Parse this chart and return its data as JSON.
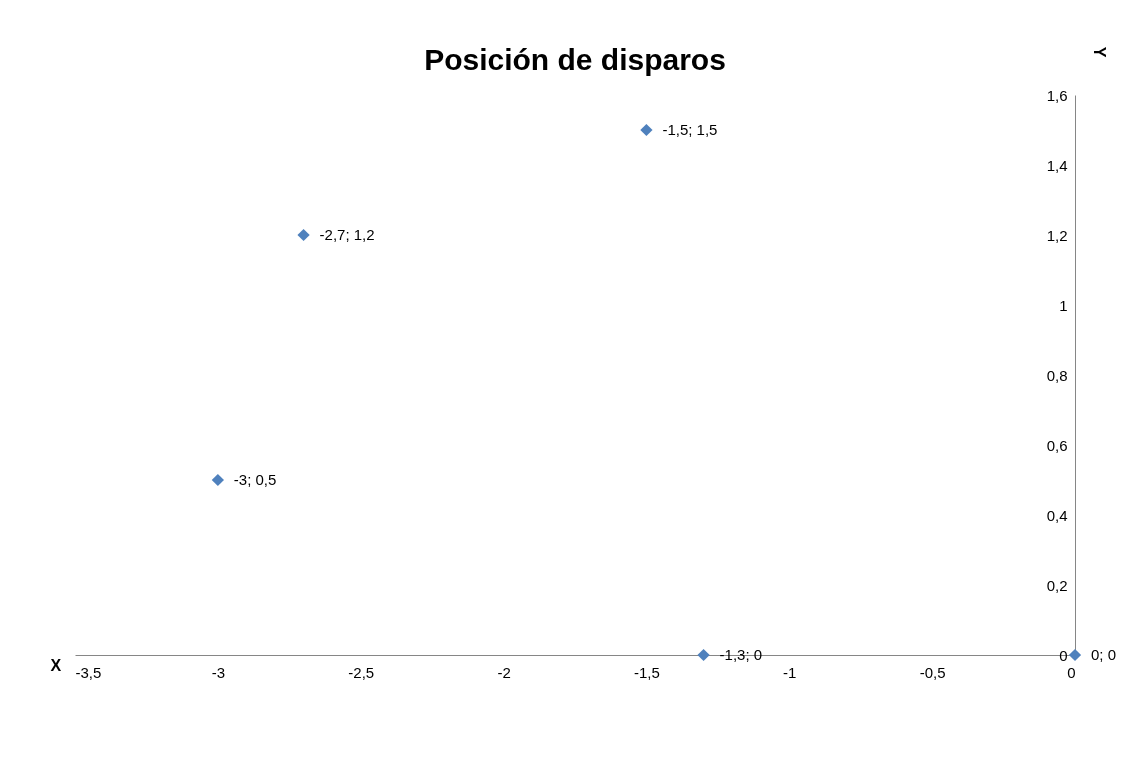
{
  "chart_data": {
    "type": "scatter",
    "title": "Posición de disparos",
    "xlabel": "X",
    "ylabel": "Y",
    "x": [
      -1.5,
      -2.7,
      -3,
      -1.3,
      0
    ],
    "series": [
      {
        "color": "#4f81bd",
        "values": [
          1.5,
          1.2,
          0.5,
          0,
          0
        ],
        "value_labels": [
          "-1,5; 1,5",
          "-2,7; 1,2",
          "-3; 0,5",
          "-1,3; 0",
          "0; 0"
        ]
      }
    ],
    "xlim": [
      -3.5,
      0
    ],
    "ylim": [
      0,
      1.6
    ],
    "xticks": [
      {
        "value": -3.5,
        "label": "-3,5"
      },
      -3,
      {
        "value": -2.5,
        "label": "-2,5"
      },
      -2,
      {
        "value": -1.5,
        "label": "-1,5"
      },
      -1,
      {
        "value": -0.5,
        "label": "-0,5"
      },
      0
    ],
    "yticks": [
      0,
      {
        "value": 0.2,
        "label": "0,2"
      },
      {
        "value": 0.4,
        "label": "0,4"
      },
      {
        "value": 0.6,
        "label": "0,6"
      },
      {
        "value": 0.8,
        "label": "0,8"
      },
      1,
      {
        "value": 1.2,
        "label": "1,2"
      },
      {
        "value": 1.4,
        "label": "1,4"
      },
      {
        "value": 1.6,
        "label": "1,6"
      }
    ],
    "marker": "diamond"
  }
}
